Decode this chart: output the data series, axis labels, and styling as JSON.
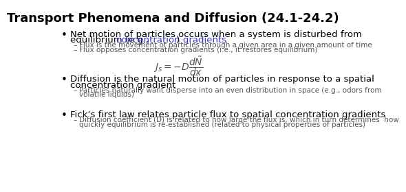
{
  "title": "Transport Phenomena and Diffusion (24.1-24.2)",
  "title_fontsize": 13,
  "title_fontweight": "bold",
  "background_color": "#ffffff",
  "text_color": "#000000",
  "link_color": "#3333cc",
  "bullet1_line1": "Net motion of particles occurs when a system is disturbed from",
  "bullet1_line2a": "equilibrium (e.g., ",
  "bullet1_link": "concentration gradients",
  "bullet1_line2b": ")",
  "bullet1_sub1": "Flux is the movement of particles through a given area in a given amount of time",
  "bullet1_sub2": "Flux opposes concentration gradients (i.e., it restores equilibrium)",
  "bullet2_line1": "Diffusion is the natural motion of particles in response to a spatial",
  "bullet2_line2": "concentration gradient",
  "bullet2_sub1a": "Particles naturally want disperse into an even distribution in space (e.g., odors from",
  "bullet2_sub1b": "volatile liquids)",
  "bullet3_line1": "Fick’s first law relates particle flux to spatial concentration gradients",
  "bullet3_sub1a": "Diffusion coefficient (D) is related to how large the flux is, which in turn determines  how",
  "bullet3_sub1b": "quickly equilibrium is re-established (related to physical properties of particles)",
  "small_fontsize": 7.5,
  "main_fontsize": 9.5,
  "eq_fontsize": 10,
  "sub_color": "#555555",
  "bullet_color": "#000000"
}
